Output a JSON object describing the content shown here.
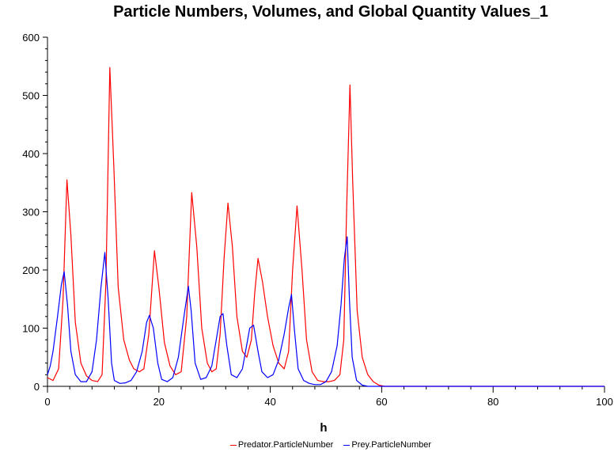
{
  "chart_data": {
    "type": "line",
    "title": "Particle Numbers, Volumes, and Global Quantity Values_1",
    "xlabel": "h",
    "ylabel": "",
    "xlim": [
      0,
      100
    ],
    "ylim": [
      0,
      600
    ],
    "xticks": [
      "0",
      "20",
      "40",
      "60",
      "80",
      "100"
    ],
    "yticks": [
      "0",
      "100",
      "200",
      "300",
      "400",
      "500",
      "600"
    ],
    "grid": false,
    "legend_position": "bottom-center",
    "series": [
      {
        "name": "Predator.ParticleNumber",
        "color": "#ff0000",
        "points": [
          [
            0,
            15
          ],
          [
            1,
            10
          ],
          [
            2,
            30
          ],
          [
            2.8,
            150
          ],
          [
            3.5,
            355
          ],
          [
            4.2,
            260
          ],
          [
            5,
            110
          ],
          [
            6,
            40
          ],
          [
            7,
            18
          ],
          [
            8,
            10
          ],
          [
            9,
            8
          ],
          [
            9.8,
            20
          ],
          [
            10.5,
            180
          ],
          [
            11.2,
            548
          ],
          [
            11.9,
            380
          ],
          [
            12.7,
            170
          ],
          [
            13.7,
            80
          ],
          [
            14.7,
            45
          ],
          [
            15.5,
            30
          ],
          [
            16.5,
            25
          ],
          [
            17.3,
            30
          ],
          [
            18.2,
            90
          ],
          [
            19.2,
            233
          ],
          [
            20,
            170
          ],
          [
            21,
            75
          ],
          [
            22,
            35
          ],
          [
            23,
            20
          ],
          [
            24,
            25
          ],
          [
            25,
            120
          ],
          [
            25.9,
            333
          ],
          [
            26.8,
            240
          ],
          [
            27.7,
            100
          ],
          [
            28.7,
            40
          ],
          [
            29.5,
            25
          ],
          [
            30.3,
            30
          ],
          [
            31,
            90
          ],
          [
            31.7,
            220
          ],
          [
            32.4,
            315
          ],
          [
            33.2,
            240
          ],
          [
            34,
            120
          ],
          [
            35,
            60
          ],
          [
            35.8,
            50
          ],
          [
            36.6,
            80
          ],
          [
            37.2,
            160
          ],
          [
            37.8,
            220
          ],
          [
            38.6,
            180
          ],
          [
            39.5,
            120
          ],
          [
            40.5,
            70
          ],
          [
            41.5,
            40
          ],
          [
            42.5,
            30
          ],
          [
            43.3,
            60
          ],
          [
            44,
            200
          ],
          [
            44.8,
            310
          ],
          [
            45.7,
            200
          ],
          [
            46.5,
            80
          ],
          [
            47.5,
            25
          ],
          [
            48.5,
            10
          ],
          [
            49.5,
            8
          ],
          [
            50.5,
            8
          ],
          [
            51.5,
            10
          ],
          [
            52.5,
            20
          ],
          [
            53.2,
            80
          ],
          [
            53.7,
            300
          ],
          [
            54.3,
            518
          ],
          [
            54.8,
            350
          ],
          [
            55.6,
            130
          ],
          [
            56.5,
            50
          ],
          [
            57.5,
            20
          ],
          [
            58.5,
            8
          ],
          [
            59.5,
            2
          ],
          [
            60.5,
            0
          ],
          [
            100,
            0
          ]
        ]
      },
      {
        "name": "Prey.ParticleNumber",
        "color": "#0000ff",
        "points": [
          [
            0,
            20
          ],
          [
            0.5,
            35
          ],
          [
            1,
            60
          ],
          [
            1.8,
            120
          ],
          [
            2.5,
            175
          ],
          [
            3,
            197
          ],
          [
            3.6,
            140
          ],
          [
            4.2,
            60
          ],
          [
            5,
            20
          ],
          [
            6,
            8
          ],
          [
            7,
            8
          ],
          [
            8,
            25
          ],
          [
            8.8,
            80
          ],
          [
            9.6,
            170
          ],
          [
            10.3,
            230
          ],
          [
            10.9,
            150
          ],
          [
            11.5,
            40
          ],
          [
            12,
            10
          ],
          [
            13,
            5
          ],
          [
            14,
            6
          ],
          [
            15,
            10
          ],
          [
            16,
            25
          ],
          [
            17,
            60
          ],
          [
            17.8,
            110
          ],
          [
            18.3,
            122
          ],
          [
            19,
            100
          ],
          [
            19.8,
            40
          ],
          [
            20.5,
            12
          ],
          [
            21.5,
            8
          ],
          [
            22.5,
            15
          ],
          [
            23.5,
            50
          ],
          [
            24.5,
            120
          ],
          [
            25.3,
            172
          ],
          [
            25.8,
            130
          ],
          [
            26.5,
            40
          ],
          [
            27.5,
            12
          ],
          [
            28.5,
            15
          ],
          [
            29.5,
            35
          ],
          [
            30.3,
            80
          ],
          [
            31,
            120
          ],
          [
            31.5,
            125
          ],
          [
            32.2,
            70
          ],
          [
            33,
            20
          ],
          [
            34,
            15
          ],
          [
            35,
            30
          ],
          [
            36.3,
            100
          ],
          [
            37,
            105
          ],
          [
            37.8,
            60
          ],
          [
            38.5,
            25
          ],
          [
            39.5,
            15
          ],
          [
            40.5,
            20
          ],
          [
            41.5,
            45
          ],
          [
            42.5,
            90
          ],
          [
            43.3,
            135
          ],
          [
            43.8,
            158
          ],
          [
            44.3,
            100
          ],
          [
            45,
            30
          ],
          [
            46,
            10
          ],
          [
            47,
            5
          ],
          [
            48,
            3
          ],
          [
            49,
            3
          ],
          [
            50,
            8
          ],
          [
            51,
            25
          ],
          [
            52,
            70
          ],
          [
            52.7,
            140
          ],
          [
            53.3,
            220
          ],
          [
            53.8,
            257
          ],
          [
            54.2,
            150
          ],
          [
            54.7,
            50
          ],
          [
            55.5,
            10
          ],
          [
            56.5,
            2
          ],
          [
            57.5,
            0
          ],
          [
            100,
            0
          ]
        ]
      }
    ]
  }
}
